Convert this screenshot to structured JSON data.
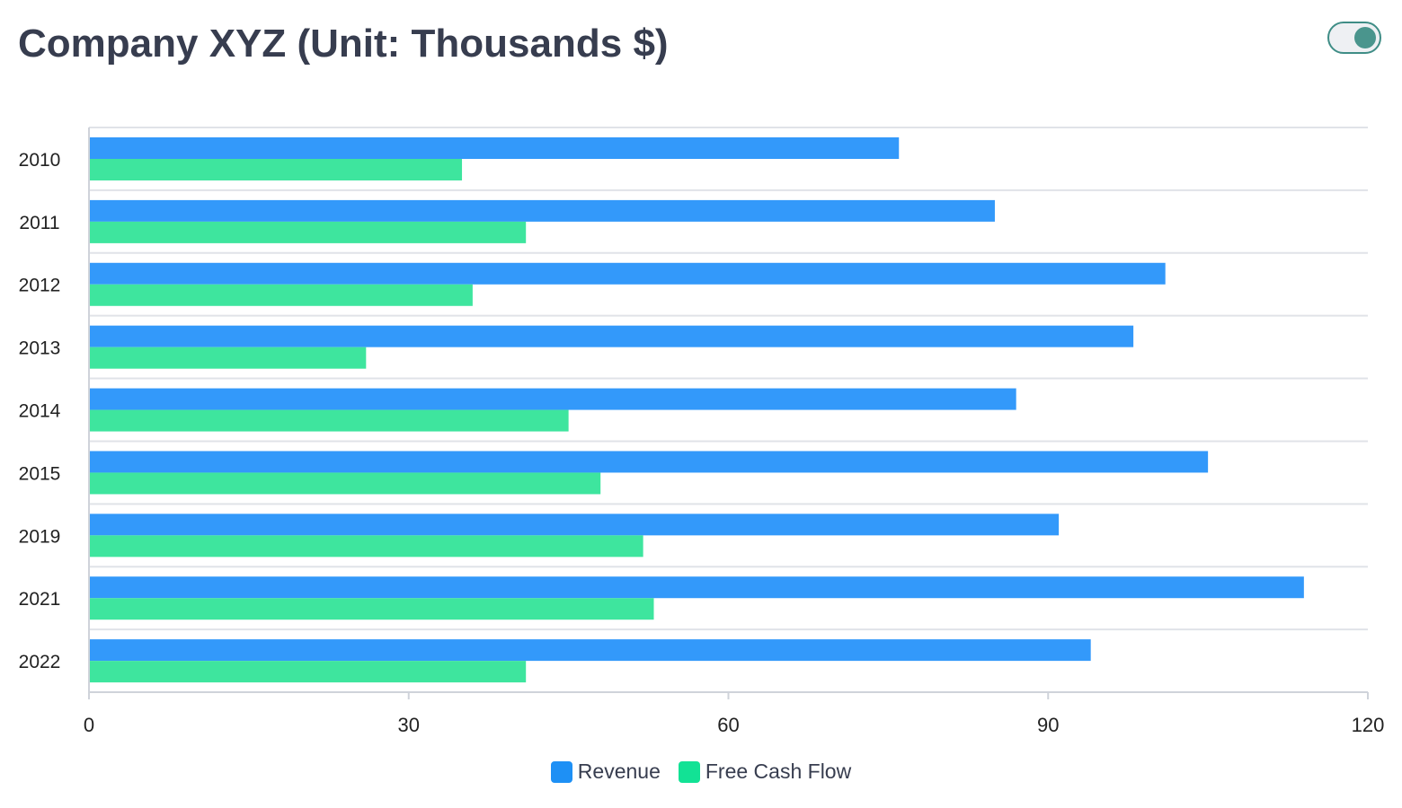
{
  "title": "Company XYZ (Unit: Thousands $)",
  "toggle": {
    "state": "on"
  },
  "chart_data": {
    "type": "bar",
    "orientation": "horizontal",
    "categories": [
      "2010",
      "2011",
      "2012",
      "2013",
      "2014",
      "2015",
      "2019",
      "2021",
      "2022"
    ],
    "series": [
      {
        "name": "Revenue",
        "color": "#3399fa",
        "values": [
          76,
          85,
          101,
          98,
          87,
          105,
          91,
          114,
          94
        ]
      },
      {
        "name": "Free Cash Flow",
        "color": "#3ee59e",
        "values": [
          35,
          41,
          36,
          26,
          45,
          48,
          52,
          53,
          41
        ]
      }
    ],
    "xlim": [
      0,
      120
    ],
    "xticks": [
      "0",
      "30",
      "60",
      "90",
      "120"
    ],
    "grid": true,
    "legend_position": "bottom-center",
    "legend_colors": [
      "#1e90f5",
      "#12e295"
    ]
  }
}
